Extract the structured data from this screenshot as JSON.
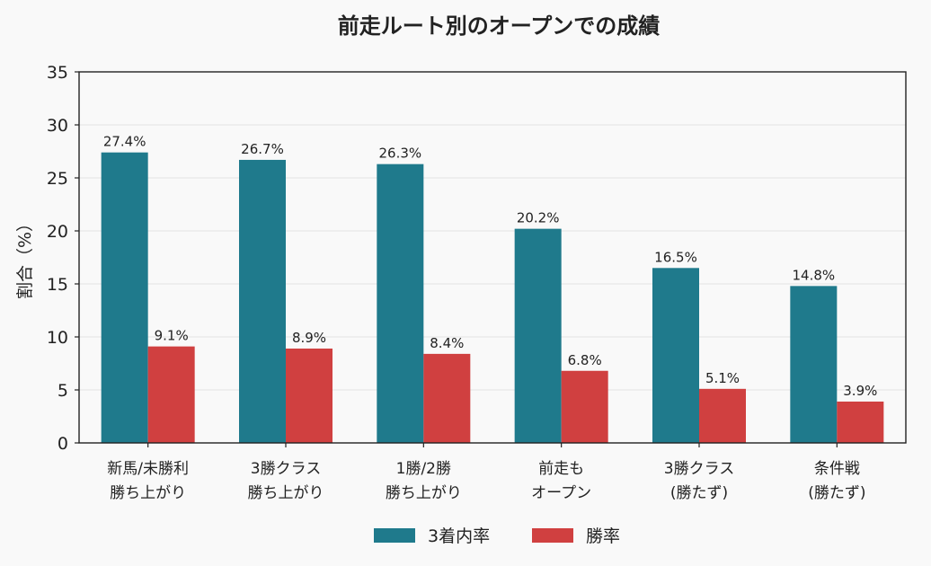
{
  "chart_data": {
    "type": "bar",
    "title": "前走ルート別のオープンでの成績",
    "ylabel": "割合（%）",
    "xlabel": "",
    "ylim": [
      0,
      35
    ],
    "yticks": [
      0,
      5,
      10,
      15,
      20,
      25,
      30,
      35
    ],
    "grid": true,
    "legend_position": "bottom-center",
    "categories": [
      [
        "新馬/未勝利",
        "勝ち上がり"
      ],
      [
        "3勝クラス",
        "勝ち上がり"
      ],
      [
        "1勝/2勝",
        "勝ち上がり"
      ],
      [
        "前走も",
        "オープン"
      ],
      [
        "3勝クラス",
        "(勝たず)"
      ],
      [
        "条件戦",
        "(勝たず)"
      ]
    ],
    "series": [
      {
        "name": "3着内率",
        "color": "#1f7a8c",
        "values": [
          27.4,
          26.7,
          26.3,
          20.2,
          16.5,
          14.8
        ],
        "labels": [
          "27.4%",
          "26.7%",
          "26.3%",
          "20.2%",
          "16.5%",
          "14.8%"
        ]
      },
      {
        "name": "勝率",
        "color": "#d04040",
        "values": [
          9.1,
          8.9,
          8.4,
          6.8,
          5.1,
          3.9
        ],
        "labels": [
          "9.1%",
          "8.9%",
          "8.4%",
          "6.8%",
          "5.1%",
          "3.9%"
        ]
      }
    ]
  }
}
